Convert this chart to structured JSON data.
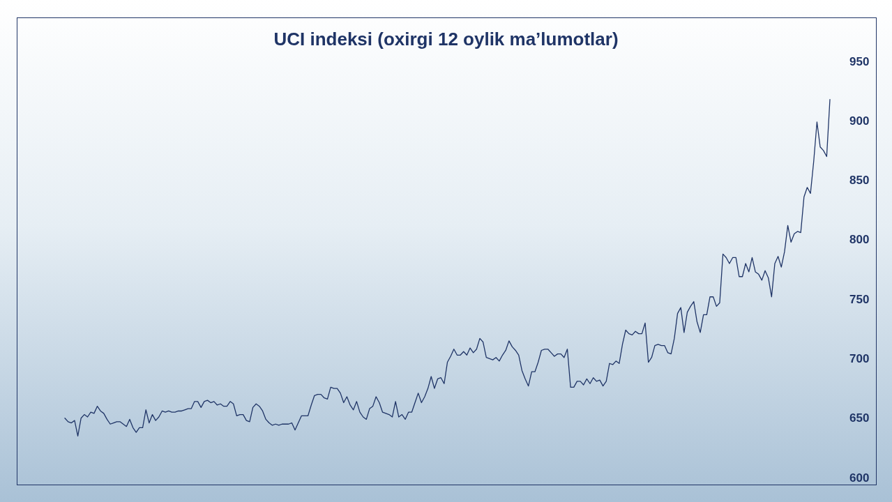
{
  "chart_data": {
    "type": "line",
    "title": "UCI indeksi (oxirgi 12 oylik ma’lumotlar)",
    "categories": [
      null,
      null,
      null,
      null,
      null,
      null,
      null,
      null,
      null,
      null,
      null,
      null,
      null,
      null,
      null,
      null,
      null,
      null,
      null,
      null,
      null,
      null,
      null,
      null,
      null,
      null,
      null,
      null,
      null,
      null,
      null,
      null,
      null,
      null,
      null,
      null,
      null,
      null,
      null,
      null,
      null,
      null,
      null,
      null,
      null,
      null,
      null,
      null,
      null,
      null,
      null,
      null,
      null,
      null,
      null,
      null,
      null,
      null,
      null,
      null,
      null,
      null,
      null,
      null,
      null,
      null,
      null,
      null,
      null,
      null,
      null,
      null,
      null,
      null,
      null,
      null,
      null,
      null,
      null,
      null,
      null,
      null,
      null,
      null,
      null,
      null,
      null,
      null,
      null,
      null,
      null,
      null,
      null,
      null,
      null,
      null,
      null,
      null,
      null,
      null,
      null,
      null,
      null,
      null,
      null,
      null,
      null,
      null,
      null,
      null,
      null,
      null,
      null,
      null,
      null,
      null,
      null,
      null,
      null,
      null,
      null,
      null,
      null,
      null,
      null,
      null,
      null,
      null,
      null,
      null,
      null,
      null,
      null,
      null,
      null,
      null,
      null,
      null,
      null,
      null,
      null,
      null,
      null,
      null,
      null,
      null,
      null,
      null,
      null,
      null,
      null,
      null,
      null,
      null,
      null,
      null,
      null,
      null,
      null,
      null,
      null,
      null,
      null,
      null,
      null,
      null,
      null,
      null,
      null,
      null,
      null,
      null,
      null,
      null,
      null,
      null,
      null,
      null,
      null,
      null,
      null,
      null,
      null,
      null,
      null,
      null,
      null,
      null,
      null,
      null,
      null,
      null,
      null,
      null,
      null,
      null,
      null,
      null,
      null,
      null,
      null,
      null,
      null,
      null,
      null,
      null,
      null,
      null,
      null,
      null,
      null,
      null,
      null,
      null,
      null,
      null,
      null,
      null,
      null,
      null,
      null,
      null,
      null,
      null,
      null,
      null,
      null,
      null,
      null,
      null,
      null,
      null,
      null,
      null,
      null,
      null,
      null
    ],
    "values": [
      650,
      647,
      646,
      648,
      635,
      650,
      653,
      651,
      655,
      654,
      660,
      656,
      654,
      649,
      645,
      646,
      647,
      647,
      645,
      643,
      649,
      642,
      638,
      642,
      642,
      657,
      646,
      653,
      648,
      651,
      656,
      655,
      656,
      655,
      655,
      656,
      656,
      657,
      658,
      658,
      664,
      664,
      659,
      664,
      665,
      663,
      664,
      661,
      662,
      660,
      660,
      664,
      662,
      652,
      653,
      653,
      648,
      647,
      659,
      662,
      660,
      656,
      649,
      646,
      644,
      645,
      644,
      645,
      645,
      645,
      646,
      640,
      646,
      652,
      652,
      652,
      661,
      669,
      670,
      670,
      667,
      666,
      676,
      675,
      675,
      671,
      663,
      668,
      661,
      657,
      664,
      655,
      651,
      649,
      658,
      660,
      668,
      663,
      655,
      654,
      653,
      651,
      664,
      651,
      653,
      649,
      655,
      655,
      663,
      671,
      663,
      668,
      675,
      685,
      675,
      683,
      684,
      679,
      697,
      702,
      708,
      703,
      703,
      706,
      703,
      709,
      705,
      708,
      717,
      714,
      701,
      700,
      699,
      701,
      698,
      703,
      707,
      715,
      710,
      707,
      703,
      690,
      683,
      677,
      689,
      689,
      697,
      707,
      708,
      708,
      705,
      702,
      704,
      704,
      701,
      708,
      676,
      676,
      681,
      681,
      678,
      683,
      679,
      684,
      681,
      682,
      677,
      681,
      696,
      695,
      698,
      696,
      712,
      724,
      721,
      720,
      723,
      721,
      721,
      730,
      697,
      701,
      711,
      712,
      711,
      711,
      705,
      704,
      717,
      738,
      743,
      722,
      739,
      744,
      748,
      731,
      722,
      737,
      737,
      752,
      752,
      744,
      747,
      788,
      785,
      780,
      785,
      785,
      769,
      769,
      780,
      773,
      785,
      773,
      771,
      766,
      774,
      768,
      752,
      780,
      786,
      777,
      790,
      812,
      798,
      805,
      807,
      806,
      836,
      844,
      839,
      866,
      899,
      878,
      875,
      870,
      918
    ],
    "color": "#1f3466",
    "ylim": [
      600,
      950
    ],
    "yticks": [
      600,
      650,
      700,
      750,
      800,
      850,
      900,
      950
    ],
    "grid": false,
    "line_style": "solid",
    "tick_labels": "y"
  }
}
